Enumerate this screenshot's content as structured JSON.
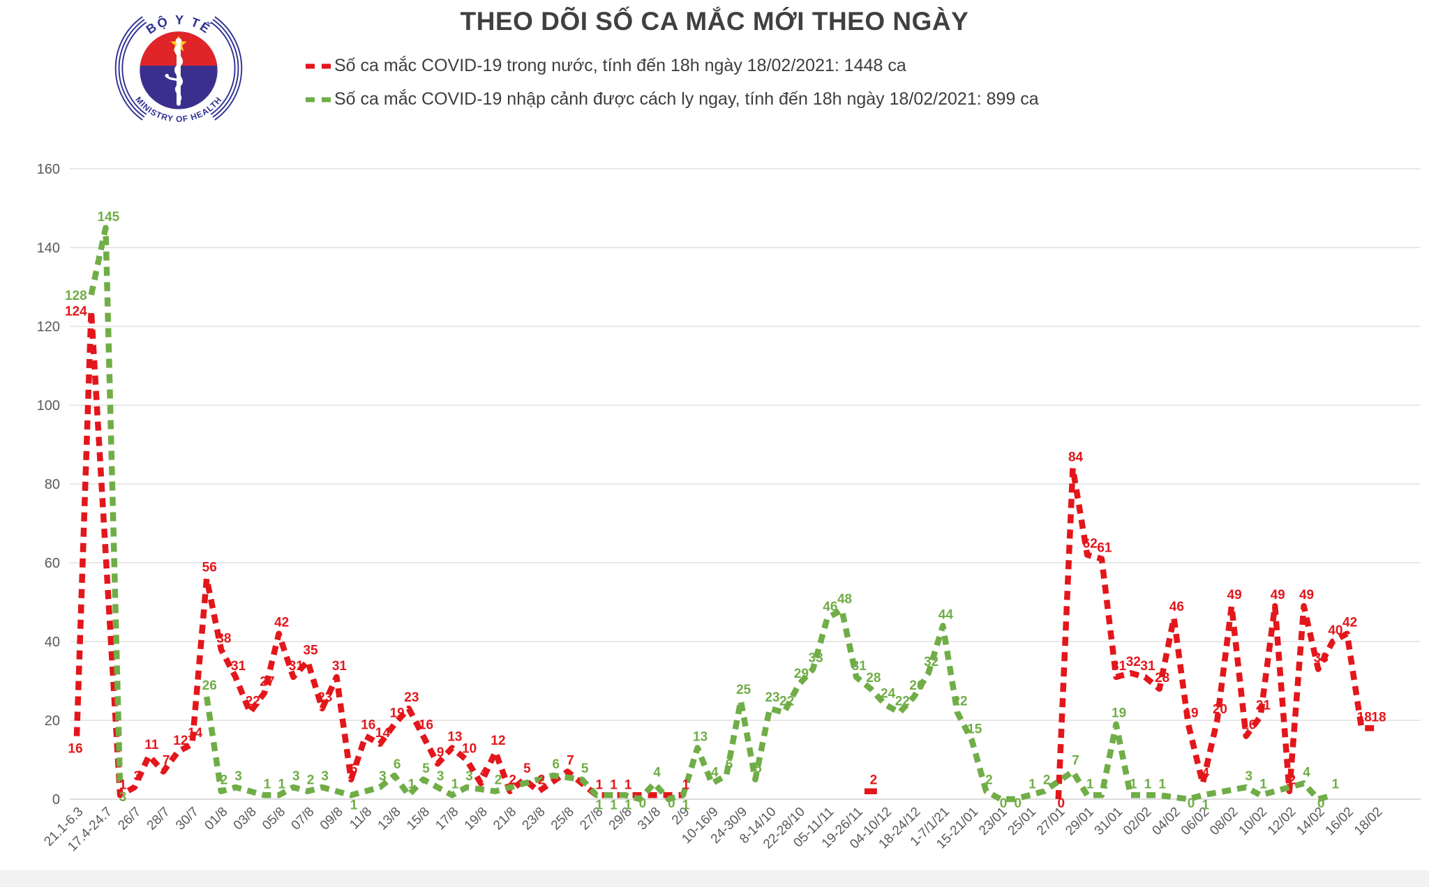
{
  "title": "THEO DÕI SỐ CA MẮC MỚI THEO NGÀY",
  "logo": {
    "top_text": "BỘ Y TẾ",
    "bottom_text": "MINISTRY OF HEALTH",
    "ring_color": "#2e3192",
    "disc_color": "#3b2f8e",
    "cap_color": "#e02529",
    "star_color": "#fcd116"
  },
  "legend": [
    {
      "label": "Số ca mắc COVID-19 trong nước, tính đến 18h ngày 18/02/2021: 1448 ca",
      "color": "#e3161b"
    },
    {
      "label": "Số ca mắc COVID-19 nhập cảnh được cách ly ngay, tính đến 18h ngày 18/02/2021: 899 ca",
      "color": "#70ad47"
    }
  ],
  "chart_data": {
    "type": "line",
    "title": "THEO DÕI SỐ CA MẮC MỚI THEO NGÀY",
    "xlabel": "",
    "ylabel": "",
    "ylim": [
      0,
      160
    ],
    "yticks": [
      0,
      20,
      40,
      60,
      80,
      100,
      120,
      140,
      160
    ],
    "grid": true,
    "legend_position": "top",
    "layout": {
      "grid_color": "#d9d9d9",
      "axis_color": "#c6c6c6",
      "tick_color": "#595959"
    },
    "categories": [
      "21.1-6.3",
      "",
      "17.4-24.7",
      "",
      "26/7",
      "",
      "28/7",
      "",
      "30/7",
      "",
      "01/8",
      "",
      "03/8",
      "",
      "05/8",
      "",
      "07/8",
      "",
      "09/8",
      "",
      "11/8",
      "",
      "13/8",
      "",
      "15/8",
      "",
      "17/8",
      "",
      "19/8",
      "",
      "21/8",
      "",
      "23/8",
      "",
      "25/8",
      "",
      "27/8",
      "",
      "29/8",
      "",
      "31/8",
      "",
      "2/9",
      "",
      "10-16/9",
      "",
      "24-30/9",
      "",
      "8-14/10",
      "",
      "22-28/10",
      "",
      "05-11/11",
      "",
      "19-26/11",
      "",
      "04-10/12",
      "",
      "18-24/12",
      "",
      "1-7/1/21",
      "",
      "15-21/01",
      "",
      "23/01",
      "",
      "25/01",
      "",
      "27/01",
      "",
      "29/01",
      "",
      "31/01",
      "",
      "02/02",
      "",
      "04/02",
      "",
      "06/02",
      "",
      "08/02",
      "",
      "10/02",
      "",
      "12/02",
      "",
      "14/02",
      "",
      "16/02",
      "",
      "18/02"
    ],
    "series": [
      {
        "name": "Số ca mắc COVID-19 trong nước",
        "color": "#e3161b",
        "values": [
          16,
          124,
          null,
          1,
          3,
          11,
          7,
          12,
          14,
          56,
          38,
          31,
          22,
          27,
          42,
          31,
          35,
          23,
          31,
          5,
          16,
          14,
          19,
          23,
          16,
          9,
          13,
          10,
          4,
          12,
          2,
          5,
          2,
          null,
          7,
          null,
          1,
          1,
          1,
          null,
          null,
          null,
          1,
          null,
          null,
          null,
          null,
          null,
          null,
          null,
          null,
          null,
          null,
          null,
          null,
          2,
          null,
          null,
          null,
          null,
          null,
          null,
          null,
          null,
          null,
          null,
          null,
          null,
          0,
          84,
          62,
          61,
          31,
          32,
          31,
          28,
          46,
          19,
          4,
          20,
          49,
          16,
          21,
          49,
          2,
          49,
          33,
          40,
          42,
          18,
          18
        ]
      },
      {
        "name": "Số ca mắc COVID-19 nhập cảnh được cách ly ngay",
        "color": "#70ad47",
        "values": [
          null,
          128,
          145,
          3,
          null,
          null,
          null,
          null,
          null,
          26,
          2,
          3,
          null,
          1,
          1,
          3,
          2,
          3,
          null,
          1,
          null,
          3,
          6,
          1,
          5,
          3,
          1,
          3,
          null,
          2,
          null,
          null,
          null,
          6,
          null,
          5,
          1,
          1,
          1,
          0,
          4,
          0,
          1,
          13,
          4,
          6,
          25,
          5,
          23,
          22,
          29,
          33,
          46,
          48,
          31,
          28,
          24,
          22,
          26,
          32,
          44,
          22,
          15,
          2,
          0,
          0,
          1,
          2,
          null,
          7,
          1,
          1,
          19,
          1,
          1,
          1,
          null,
          0,
          1,
          null,
          null,
          3,
          1,
          null,
          null,
          4,
          0,
          1,
          null,
          null,
          null
        ]
      }
    ]
  }
}
